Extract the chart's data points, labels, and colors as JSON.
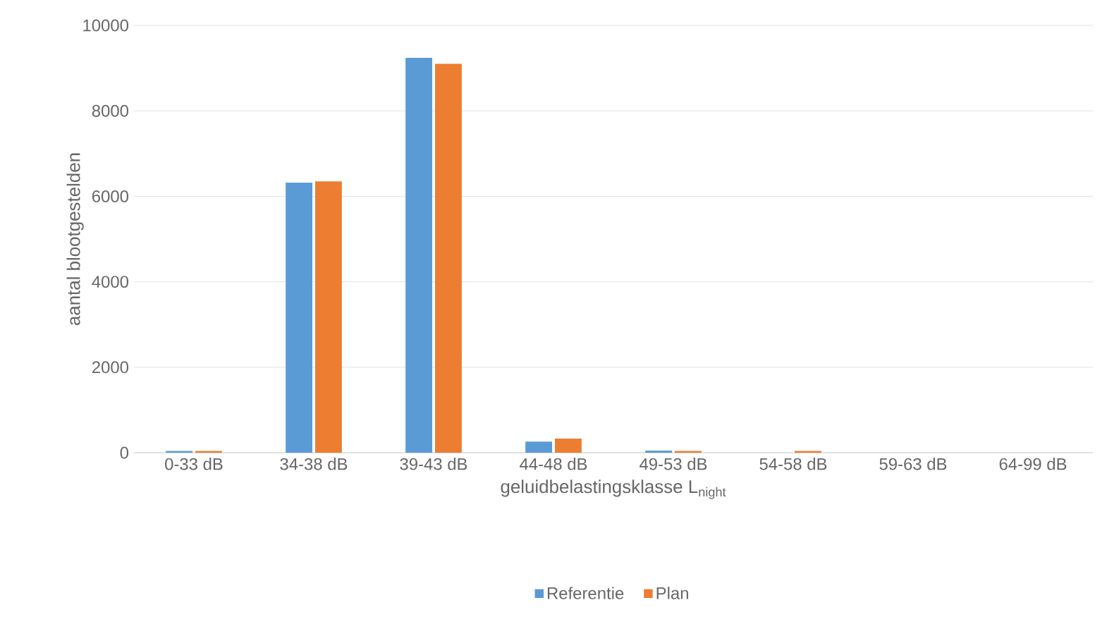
{
  "chart_data": {
    "type": "bar",
    "xlabel": "geluidbelastingsklasse L$_{night}$",
    "ylabel": "aantal blootgestelden",
    "categories": [
      "0-33 dB",
      "34-38 dB",
      "39-43 dB",
      "44-48 dB",
      "49-53 dB",
      "54-58 dB",
      "59-63 dB",
      "64-99 dB"
    ],
    "series": [
      {
        "name": "Referentie",
        "color": "#5b9bd5",
        "values": [
          40,
          6320,
          9240,
          260,
          50,
          0,
          0,
          0
        ]
      },
      {
        "name": "Plan",
        "color": "#ed7d31",
        "values": [
          40,
          6350,
          9100,
          330,
          40,
          40,
          0,
          0
        ]
      }
    ],
    "ylim": [
      0,
      10000
    ],
    "yticks": [
      0,
      2000,
      4000,
      6000,
      8000,
      10000
    ],
    "grid": "y",
    "legend": "bottom"
  }
}
